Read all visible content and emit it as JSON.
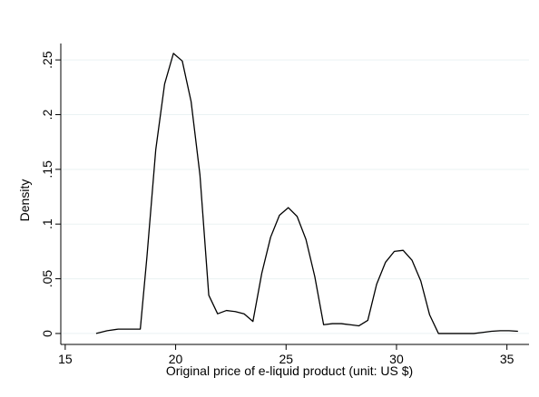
{
  "chart_data": {
    "type": "line",
    "xlabel": "Original price of e-liquid product (unit: US $)",
    "ylabel": "Density",
    "xlim": [
      14.8,
      36
    ],
    "ylim": [
      -0.01,
      0.265
    ],
    "xticks": [
      15,
      20,
      25,
      30,
      35
    ],
    "yticks": [
      0,
      0.05,
      0.1,
      0.15,
      0.2,
      0.25
    ],
    "ytick_labels": [
      "0",
      ".05",
      ".1",
      ".15",
      ".2",
      ".25"
    ],
    "grid": "horizontal",
    "series": [
      {
        "x": [
          16.4,
          16.9,
          17.4,
          17.9,
          18.4,
          18.7,
          19.1,
          19.5,
          19.9,
          20.3,
          20.7,
          21.1,
          21.5,
          21.9,
          22.3,
          22.7,
          23.1,
          23.5,
          23.9,
          24.3,
          24.7,
          25.1,
          25.5,
          25.9,
          26.3,
          26.7,
          27.1,
          27.5,
          27.9,
          28.3,
          28.7,
          29.1,
          29.5,
          29.9,
          30.3,
          30.7,
          31.1,
          31.5,
          31.9,
          32.3,
          32.7,
          33.1,
          33.5,
          33.9,
          34.3,
          34.7,
          35.1,
          35.5
        ],
        "y": [
          0.0,
          0.0025,
          0.004,
          0.004,
          0.004,
          0.07,
          0.168,
          0.228,
          0.256,
          0.249,
          0.212,
          0.145,
          0.035,
          0.018,
          0.021,
          0.02,
          0.018,
          0.011,
          0.055,
          0.088,
          0.108,
          0.115,
          0.107,
          0.086,
          0.052,
          0.008,
          0.009,
          0.009,
          0.008,
          0.007,
          0.012,
          0.045,
          0.065,
          0.075,
          0.076,
          0.067,
          0.048,
          0.017,
          0.0,
          0.0,
          0.0,
          0.0,
          0.0,
          0.001,
          0.002,
          0.0025,
          0.0025,
          0.002
        ]
      }
    ]
  },
  "colors": {
    "line": "#000000",
    "grid": "#eaf2f3",
    "axis": "#000000"
  }
}
